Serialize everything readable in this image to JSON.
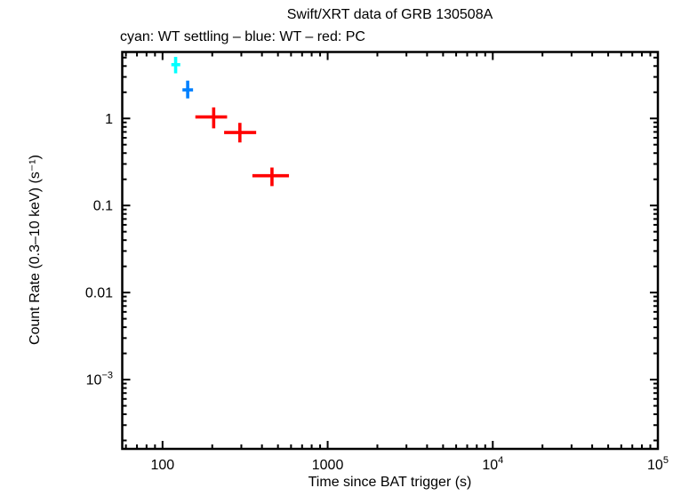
{
  "chart_data": {
    "type": "scatter",
    "title": "Swift/XRT data of GRB 130508A",
    "subtitle": "cyan: WT settling – blue: WT – red: PC",
    "xlabel": "Time since BAT trigger (s)",
    "ylabel": "Count Rate (0.3–10 keV) (s⁻¹)",
    "xscale": "log",
    "yscale": "log",
    "xlim": [
      57,
      100000
    ],
    "ylim": [
      0.00016,
      5.8
    ],
    "grid": false,
    "legend_position": "subtitle-text",
    "x_ticks": [
      {
        "v": 100,
        "label": "100"
      },
      {
        "v": 1000,
        "label": "1000"
      },
      {
        "v": 10000,
        "mant": "10",
        "exp": "4"
      },
      {
        "v": 100000,
        "mant": "10",
        "exp": "5"
      }
    ],
    "y_ticks": [
      {
        "v": 1,
        "label": "1"
      },
      {
        "v": 0.1,
        "label": "0.1"
      },
      {
        "v": 0.01,
        "label": "0.01"
      },
      {
        "v": 0.001,
        "mant": "10",
        "exp": "−3"
      }
    ],
    "series": [
      {
        "name": "WT settling",
        "color": "#00ffff",
        "marker": "error-cross",
        "points": [
          {
            "t": 120,
            "t_lo": 113,
            "t_hi": 128,
            "rate": 4.15,
            "rate_lo": 3.3,
            "rate_hi": 5.1
          }
        ]
      },
      {
        "name": "WT",
        "color": "#0080ff",
        "marker": "error-cross",
        "points": [
          {
            "t": 142,
            "t_lo": 132,
            "t_hi": 153,
            "rate": 2.13,
            "rate_lo": 1.7,
            "rate_hi": 2.72
          }
        ]
      },
      {
        "name": "PC",
        "color": "#ff0000",
        "marker": "error-cross",
        "points": [
          {
            "t": 204,
            "t_lo": 158,
            "t_hi": 246,
            "rate": 1.04,
            "rate_lo": 0.77,
            "rate_hi": 1.34
          },
          {
            "t": 294,
            "t_lo": 236,
            "t_hi": 369,
            "rate": 0.69,
            "rate_lo": 0.53,
            "rate_hi": 0.89
          },
          {
            "t": 460,
            "t_lo": 350,
            "t_hi": 583,
            "rate": 0.22,
            "rate_lo": 0.167,
            "rate_hi": 0.273
          }
        ]
      }
    ]
  }
}
